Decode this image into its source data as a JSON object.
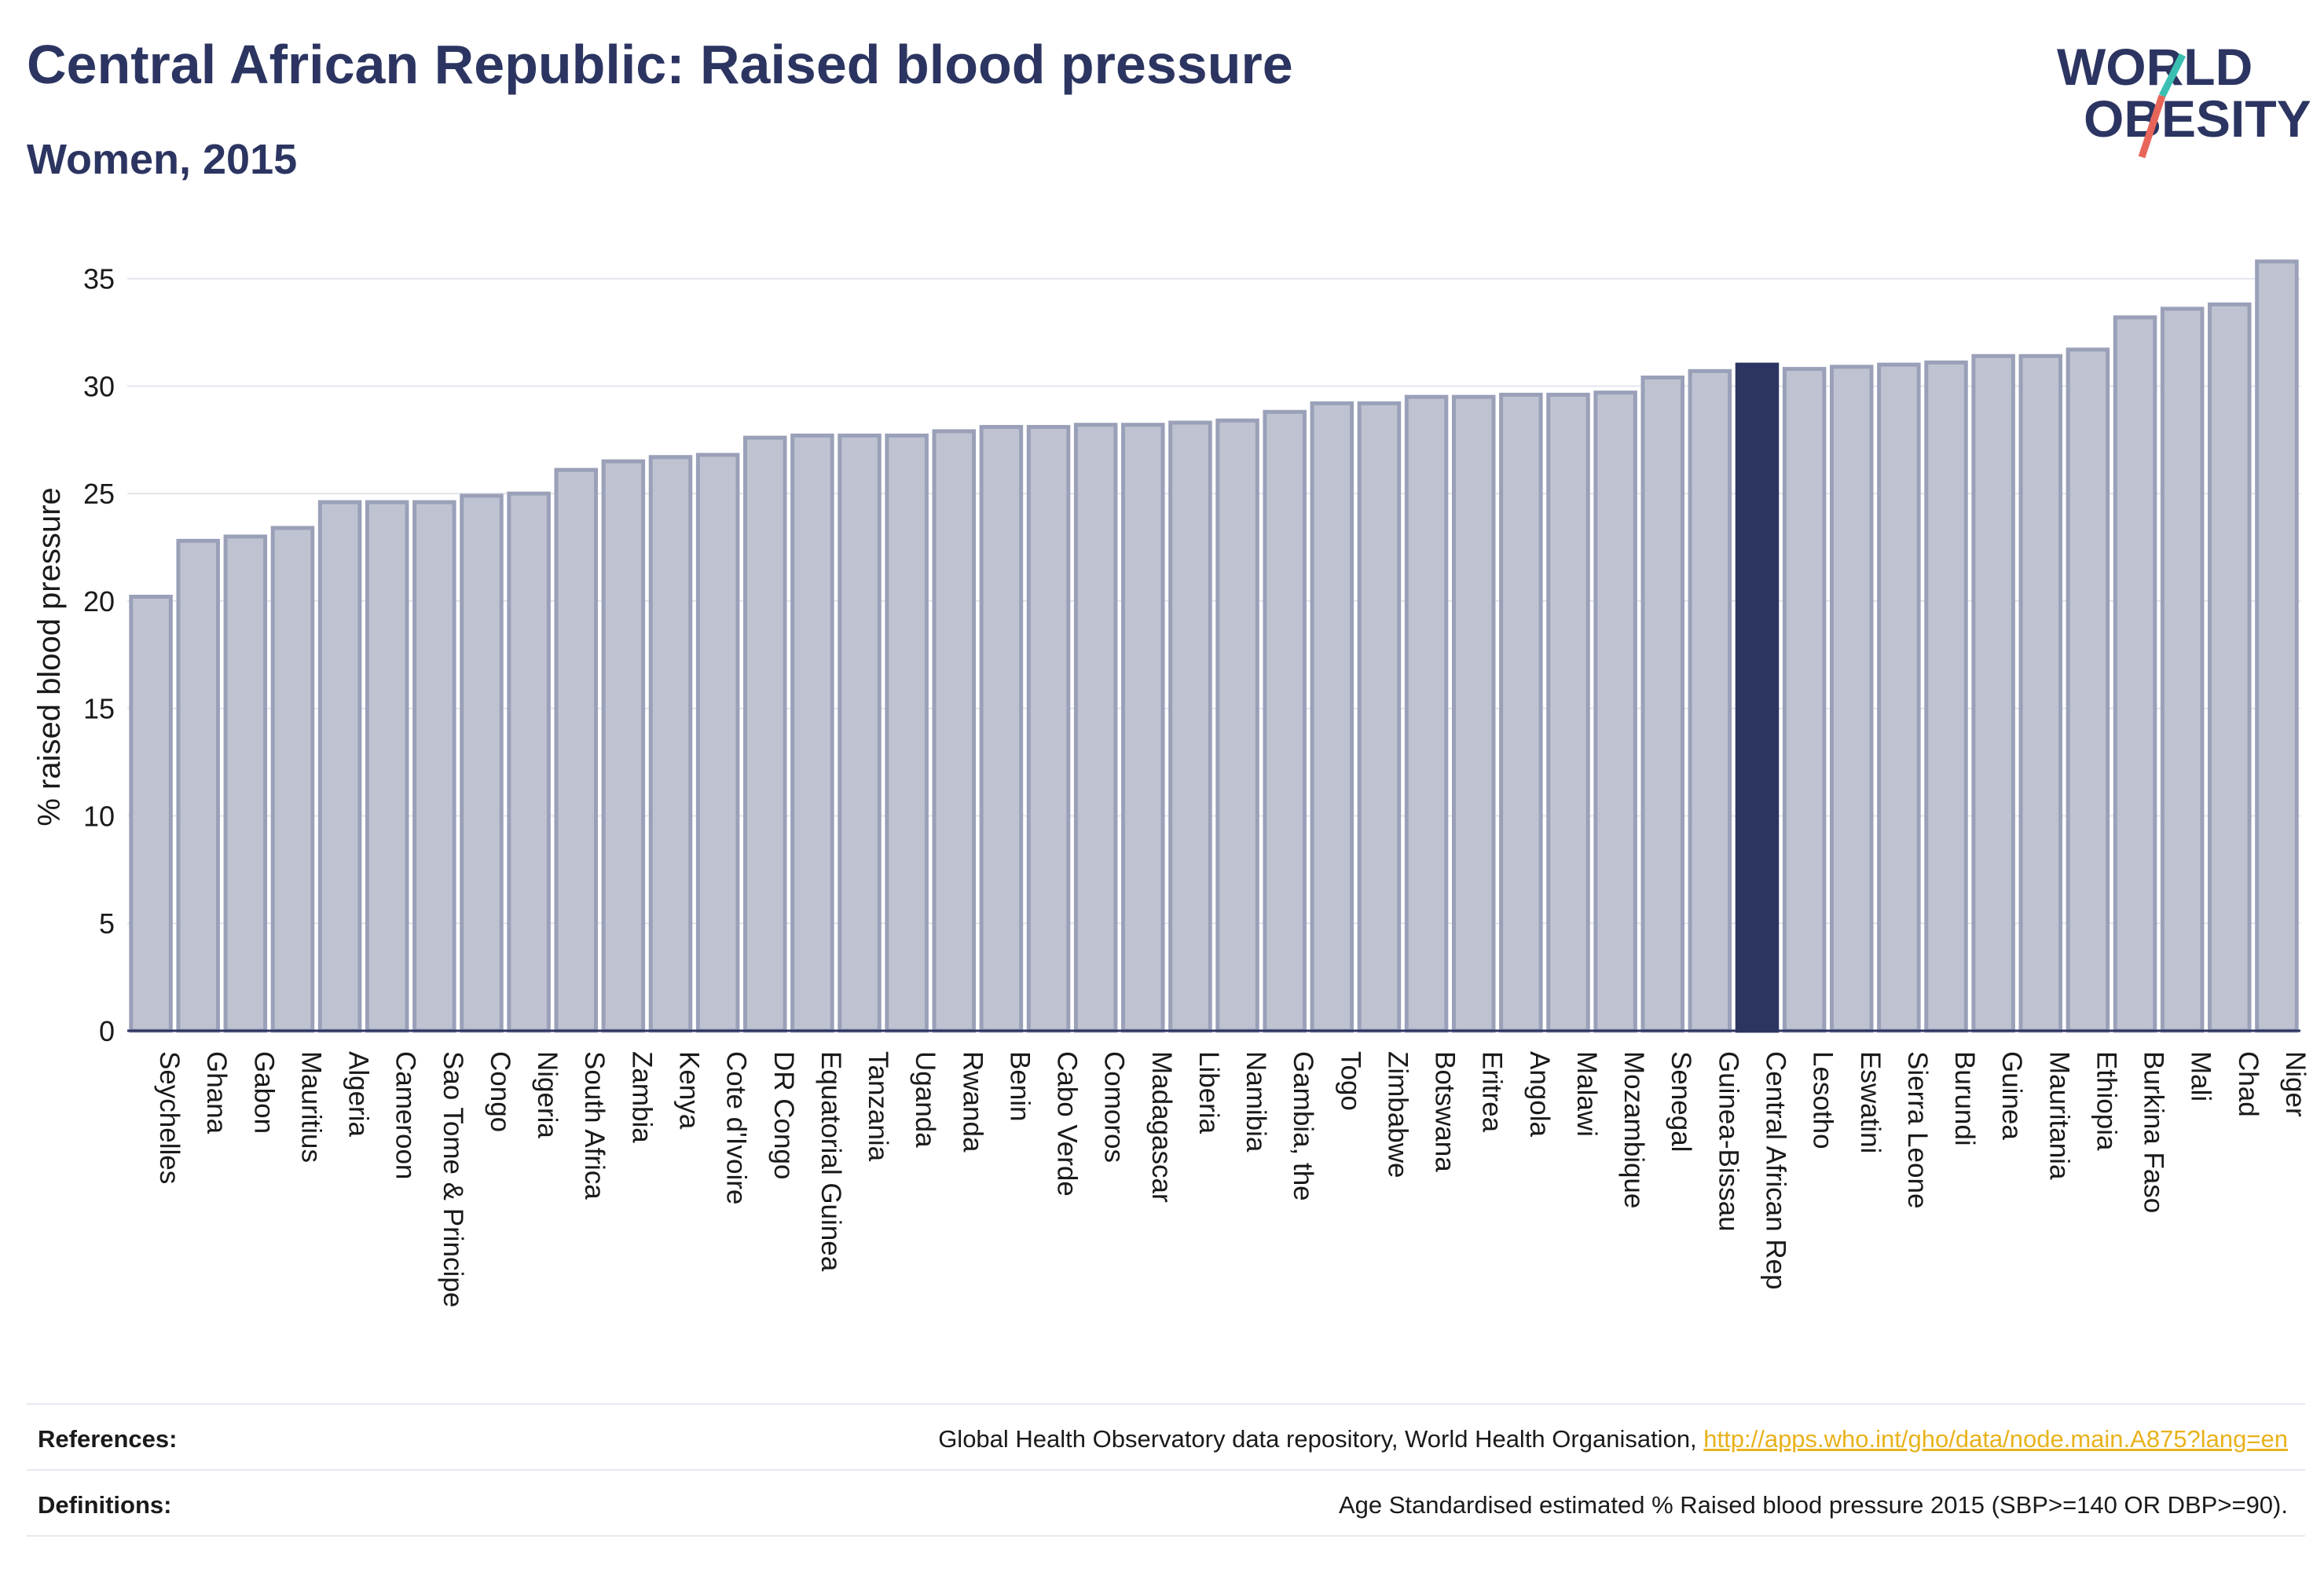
{
  "header": {
    "title": "Central African Republic: Raised blood pressure",
    "subtitle": "Women, 2015"
  },
  "logo": {
    "line1": "WORLD",
    "line2": "OBESITY",
    "colors": {
      "text": "#2c3561",
      "slash_teal": "#3bbfb2",
      "slash_red": "#e8655a"
    }
  },
  "chart_data": {
    "type": "bar",
    "title": "Central African Republic: Raised blood pressure",
    "subtitle": "Women, 2015",
    "ylabel": "% raised blood pressure",
    "xlabel": "",
    "ylim": [
      0,
      37
    ],
    "yticks": [
      0,
      5,
      10,
      15,
      20,
      25,
      30,
      35
    ],
    "grid": true,
    "highlight": "Central African Rep",
    "colors": {
      "bar": "#bfc3d1",
      "bar_edge": "#9aa0b8",
      "highlight": "#2c3561"
    },
    "categories": [
      "Seychelles",
      "Ghana",
      "Gabon",
      "Mauritius",
      "Algeria",
      "Cameroon",
      "Sao Tome & Principe",
      "Congo",
      "Nigeria",
      "South Africa",
      "Zambia",
      "Kenya",
      "Cote d'Ivoire",
      "DR Congo",
      "Equatorial Guinea",
      "Tanzania",
      "Uganda",
      "Rwanda",
      "Benin",
      "Cabo Verde",
      "Comoros",
      "Madagascar",
      "Liberia",
      "Namibia",
      "Gambia, the",
      "Togo",
      "Zimbabwe",
      "Botswana",
      "Eritrea",
      "Angola",
      "Malawi",
      "Mozambique",
      "Senegal",
      "Guinea-Bissau",
      "Central African Rep",
      "Lesotho",
      "Eswatini",
      "Sierra Leone",
      "Burundi",
      "Guinea",
      "Mauritania",
      "Ethiopia",
      "Burkina Faso",
      "Mali",
      "Chad",
      "Niger"
    ],
    "values": [
      20.2,
      22.8,
      23.0,
      23.4,
      24.6,
      24.6,
      24.6,
      24.9,
      25.0,
      26.1,
      26.5,
      26.7,
      26.8,
      27.6,
      27.7,
      27.7,
      27.7,
      27.9,
      28.1,
      28.1,
      28.2,
      28.2,
      28.3,
      28.4,
      28.8,
      29.2,
      29.2,
      29.5,
      29.5,
      29.6,
      29.6,
      29.7,
      30.4,
      30.7,
      31.0,
      30.8,
      30.9,
      31.0,
      31.1,
      31.4,
      31.4,
      31.7,
      33.2,
      33.6,
      33.8,
      35.8
    ]
  },
  "footer": {
    "references_label": "References:",
    "references_text": "Global Health Observatory data repository, World Health Organisation, ",
    "references_link": "http://apps.who.int/gho/data/node.main.A875?lang=en",
    "definitions_label": "Definitions:",
    "definitions_text": "Age Standardised estimated % Raised blood pressure 2015 (SBP>=140 OR DBP>=90)."
  }
}
